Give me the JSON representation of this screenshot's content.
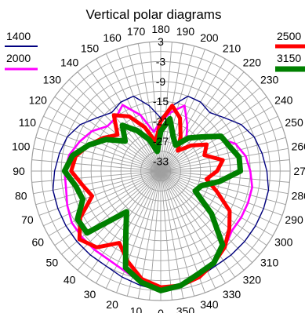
{
  "chart_data": {
    "type": "polar",
    "title": "Vertical polar diagrams",
    "angle_unit": "degrees",
    "angle_tick_labels": [
      "0",
      "10",
      "20",
      "30",
      "40",
      "50",
      "60",
      "70",
      "80",
      "90",
      "100",
      "110",
      "120",
      "130",
      "140",
      "150",
      "160",
      "170",
      "180",
      "190",
      "200",
      "210",
      "220",
      "230",
      "240",
      "250",
      "260",
      "270",
      "280",
      "290",
      "300",
      "310",
      "320",
      "330",
      "340",
      "350"
    ],
    "radial_tick_labels": [
      "3",
      "-3",
      "-9",
      "-15",
      "-21",
      "-27",
      "-33"
    ],
    "radial_range": [
      -36,
      3
    ],
    "grid": true,
    "legend": [
      {
        "name": "1400",
        "color": "#000080",
        "position": "top-left"
      },
      {
        "name": "2000",
        "color": "#ff00ff",
        "position": "top-left"
      },
      {
        "name": "2500",
        "color": "#ff0000",
        "position": "top-right"
      },
      {
        "name": "3150",
        "color": "#008000",
        "position": "top-right"
      }
    ],
    "series": [
      {
        "name": "1400",
        "color": "#000080",
        "angles": [
          0,
          10,
          20,
          30,
          40,
          50,
          60,
          70,
          80,
          90,
          100,
          110,
          120,
          130,
          140,
          150,
          160,
          170,
          180,
          190,
          200,
          210,
          220,
          230,
          240,
          250,
          260,
          270,
          280,
          290,
          300,
          310,
          320,
          330,
          340,
          350
        ],
        "values": [
          0,
          -1,
          -2,
          -3,
          -3,
          -3,
          -3,
          -3,
          -3,
          -4,
          -5,
          -6,
          -8,
          -11,
          -13,
          -12,
          -12,
          -16,
          -20,
          -16,
          -12,
          -12,
          -13,
          -11,
          -8,
          -6,
          -5,
          -4,
          -3,
          -3,
          -3,
          -3,
          -3,
          -3,
          -2,
          -1
        ]
      },
      {
        "name": "2000",
        "color": "#ff00ff",
        "angles": [
          0,
          10,
          20,
          30,
          40,
          50,
          60,
          70,
          80,
          90,
          100,
          110,
          120,
          130,
          140,
          150,
          160,
          170,
          180,
          190,
          200,
          210,
          220,
          230,
          240,
          250,
          260,
          270,
          280,
          290,
          300,
          310,
          320,
          330,
          340,
          350
        ],
        "values": [
          0,
          -2,
          -4,
          -5,
          -5,
          -5,
          -5,
          -6,
          -7,
          -7,
          -8,
          -10,
          -12,
          -15,
          -15,
          -13,
          -18,
          -24,
          -21,
          -18,
          -15,
          -20,
          -24,
          -20,
          -16,
          -12,
          -10,
          -9,
          -8,
          -8,
          -8,
          -8,
          -6,
          -4,
          -3,
          -1
        ]
      },
      {
        "name": "2500",
        "color": "#ff0000",
        "angles": [
          0,
          10,
          20,
          30,
          40,
          50,
          60,
          70,
          80,
          90,
          100,
          110,
          120,
          130,
          140,
          150,
          160,
          170,
          180,
          190,
          200,
          210,
          220,
          230,
          240,
          250,
          260,
          270,
          280,
          290,
          300,
          310,
          320,
          330,
          340,
          350
        ],
        "values": [
          -1,
          -3,
          -7,
          -11,
          -6,
          -4,
          -8,
          -14,
          -12,
          -9,
          -10,
          -13,
          -16,
          -19,
          -14,
          -17,
          -22,
          -27,
          -21,
          -16,
          -19,
          -24,
          -28,
          -24,
          -20,
          -22,
          -17,
          -19,
          -22,
          -18,
          -12,
          -9,
          -6,
          -4,
          -2,
          -1
        ]
      },
      {
        "name": "3150",
        "color": "#008000",
        "angles": [
          0,
          10,
          20,
          30,
          40,
          50,
          60,
          70,
          80,
          90,
          100,
          110,
          120,
          130,
          140,
          150,
          160,
          170,
          180,
          190,
          200,
          210,
          220,
          230,
          240,
          250,
          260,
          270,
          280,
          290,
          300,
          310,
          320,
          330,
          340,
          350
        ],
        "values": [
          0,
          -2,
          -5,
          -15,
          -20,
          -7,
          -7,
          -11,
          -10,
          -7,
          -9,
          -13,
          -17,
          -22,
          -18,
          -22,
          -26,
          -30,
          -24,
          -20,
          -25,
          -27,
          -23,
          -20,
          -15,
          -14,
          -12,
          -12,
          -18,
          -23,
          -24,
          -16,
          -7,
          -4,
          -3,
          -1
        ]
      }
    ]
  }
}
